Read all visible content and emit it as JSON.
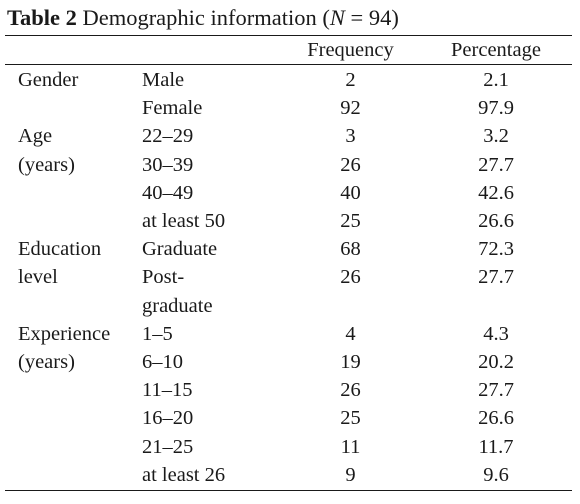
{
  "caption": {
    "label": "Table 2",
    "text": "Demographic information (",
    "n_symbol": "N",
    "n_value": " = 94)"
  },
  "columns": [
    "Frequency",
    "Percentage"
  ],
  "groups": [
    {
      "variable": [
        "Gender"
      ],
      "rows": [
        {
          "category": [
            "Male"
          ],
          "frequency": "2",
          "percentage": "2.1"
        },
        {
          "category": [
            "Female"
          ],
          "frequency": "92",
          "percentage": "97.9"
        }
      ]
    },
    {
      "variable": [
        "Age",
        "(years)"
      ],
      "rows": [
        {
          "category": [
            "22–29"
          ],
          "frequency": "3",
          "percentage": "3.2"
        },
        {
          "category": [
            "30–39"
          ],
          "frequency": "26",
          "percentage": "27.7"
        },
        {
          "category": [
            "40–49"
          ],
          "frequency": "40",
          "percentage": "42.6"
        },
        {
          "category": [
            "at least 50"
          ],
          "frequency": "25",
          "percentage": "26.6"
        }
      ]
    },
    {
      "variable": [
        "Education",
        "level"
      ],
      "rows": [
        {
          "category": [
            "Graduate"
          ],
          "frequency": "68",
          "percentage": "72.3"
        },
        {
          "category": [
            "Post-",
            "graduate"
          ],
          "frequency": "26",
          "percentage": "27.7"
        }
      ]
    },
    {
      "variable": [
        "Experience",
        "(years)"
      ],
      "rows": [
        {
          "category": [
            "1–5"
          ],
          "frequency": "4",
          "percentage": "4.3"
        },
        {
          "category": [
            "6–10"
          ],
          "frequency": "19",
          "percentage": "20.2"
        },
        {
          "category": [
            "11–15"
          ],
          "frequency": "26",
          "percentage": "27.7"
        },
        {
          "category": [
            "16–20"
          ],
          "frequency": "25",
          "percentage": "26.6"
        },
        {
          "category": [
            "21–25"
          ],
          "frequency": "11",
          "percentage": "11.7"
        },
        {
          "category": [
            "at least 26"
          ],
          "frequency": "9",
          "percentage": "9.6"
        }
      ]
    }
  ]
}
